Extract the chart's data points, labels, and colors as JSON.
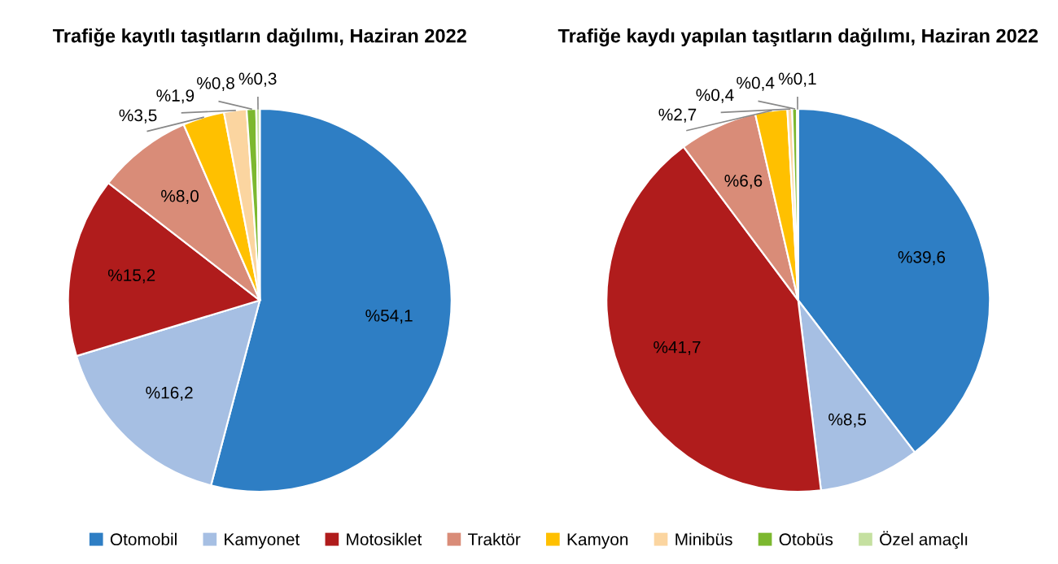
{
  "chart_data": [
    {
      "type": "pie",
      "title": "Trafiğe kayıtlı taşıtların dağılımı, Haziran 2022",
      "categories": [
        "Otomobil",
        "Kamyonet",
        "Motosiklet",
        "Traktör",
        "Kamyon",
        "Minibüs",
        "Otobüs",
        "Özel amaçlı"
      ],
      "values": [
        54.1,
        16.2,
        15.2,
        8.0,
        3.5,
        1.9,
        0.8,
        0.3
      ],
      "value_labels": [
        "%54,1",
        "%16,2",
        "%15,2",
        "%8,0",
        "%3,5",
        "%1,9",
        "%0,8",
        "%0,3"
      ],
      "colors": [
        "#2e7ec4",
        "#a6bfe3",
        "#b01c1c",
        "#d98c78",
        "#ffc000",
        "#fbd5a0",
        "#7cb82f",
        "#c5e0a0"
      ],
      "legend": "bottom"
    },
    {
      "type": "pie",
      "title": "Trafiğe kaydı yapılan taşıtların dağılımı, Haziran 2022",
      "categories": [
        null,
        null,
        null,
        null,
        null,
        null,
        null,
        null
      ],
      "values": [
        39.6,
        8.5,
        41.7,
        6.6,
        2.7,
        0.4,
        0.4,
        0.1
      ],
      "value_labels": [
        "%39,6",
        "%8,5",
        "%41,7",
        "%6,6",
        "%2,7",
        "%0,4",
        "%0,4",
        "%0,1"
      ],
      "colors": [
        "#2e7ec4",
        "#a6bfe3",
        "#b01c1c",
        "#d98c78",
        "#ffc000",
        "#fbd5a0",
        "#7cb82f",
        "#c5e0a0"
      ]
    }
  ]
}
